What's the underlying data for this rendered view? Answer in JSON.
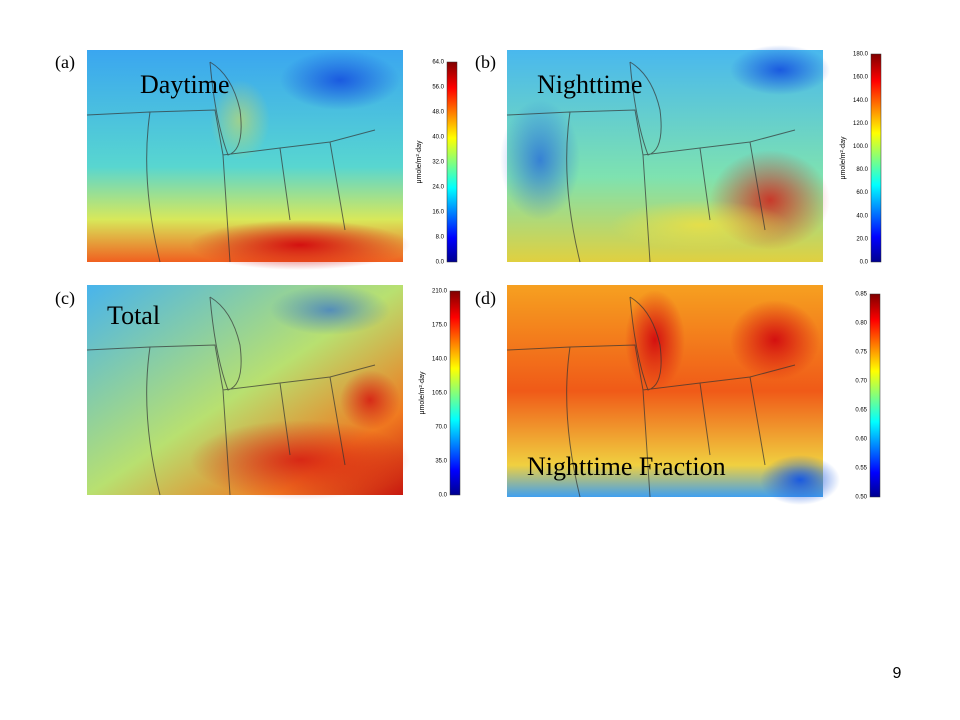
{
  "panels": [
    {
      "label": "(a)",
      "title": "Daytime",
      "colorbar": {
        "unit": "μmole/m²·day",
        "ticks": [
          "0.0",
          "8.0",
          "16.0",
          "24.0",
          "32.0",
          "40.0",
          "48.0",
          "56.0",
          "64.0"
        ]
      }
    },
    {
      "label": "(b)",
      "title": "Nighttime",
      "colorbar": {
        "unit": "μmole/m²·day",
        "ticks": [
          "0.0",
          "20.0",
          "40.0",
          "60.0",
          "80.0",
          "100.0",
          "120.0",
          "140.0",
          "160.0",
          "180.0"
        ]
      }
    },
    {
      "label": "(c)",
      "title": "Total",
      "colorbar": {
        "unit": "μmole/m²·day",
        "ticks": [
          "0.0",
          "35.0",
          "70.0",
          "105.0",
          "140.0",
          "175.0",
          "210.0"
        ]
      }
    },
    {
      "label": "(d)",
      "title": "Nighttime Fraction",
      "colorbar": {
        "ticks": [
          "0.50",
          "0.55",
          "0.60",
          "0.65",
          "0.70",
          "0.75",
          "0.80",
          "0.85"
        ]
      }
    }
  ],
  "page_number": "9"
}
